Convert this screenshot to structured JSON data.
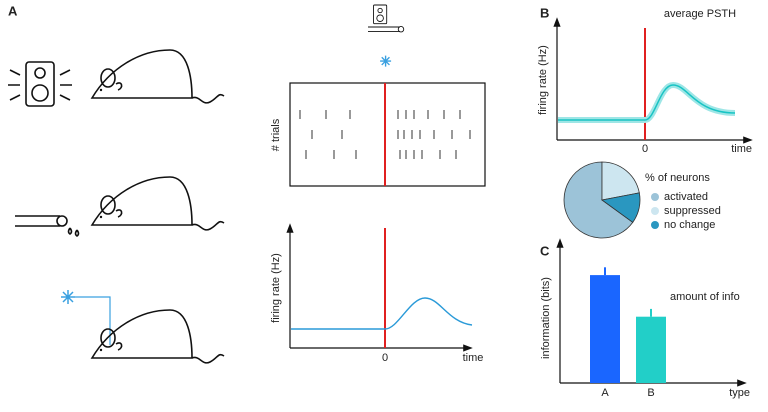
{
  "panels": {
    "a": "A",
    "b": "B",
    "c": "C"
  },
  "raster": {
    "ylabel": "# trials"
  },
  "psth_a": {
    "ylabel": "firing rate (Hz)",
    "xlabel": "time",
    "zero": "0"
  },
  "psth_b": {
    "title": "average PSTH",
    "ylabel": "firing rate (Hz)",
    "xlabel": "time",
    "zero": "0"
  },
  "chart_data": [
    {
      "type": "pie",
      "title": "% of neurons",
      "categories": [
        "activated",
        "suppressed",
        "no change"
      ],
      "values": [
        65,
        22,
        13
      ],
      "colors": [
        "#9cc3d8",
        "#cde6f0",
        "#2a97c0"
      ]
    },
    {
      "type": "bar",
      "title": "amount of info",
      "ylabel": "information (bits)",
      "xlabel": "type",
      "categories": [
        "A",
        "B"
      ],
      "values": [
        0.83,
        0.51
      ],
      "errors": [
        0.06,
        0.06
      ],
      "colors": [
        "#1a66ff",
        "#22cfc8"
      ],
      "ylim": [
        0,
        1
      ]
    }
  ]
}
